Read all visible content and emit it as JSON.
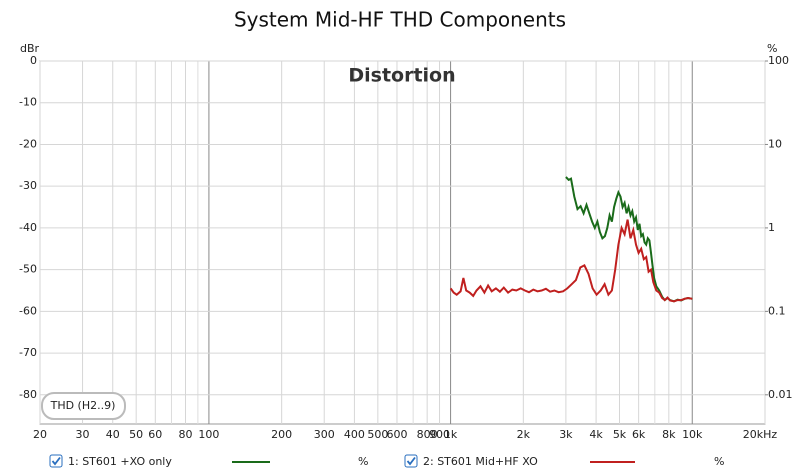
{
  "chart_data": {
    "type": "line",
    "title": "System Mid-HF THD Components",
    "annotation": "Distortion",
    "button": "THD (H2..9)",
    "y_axis_label": "dBr",
    "y2_axis_label": "%",
    "x_log": true,
    "y2_log": true,
    "grid": true,
    "xlim": [
      20,
      20000
    ],
    "ylim": [
      -87,
      0
    ],
    "y2lim": [
      0.00447,
      100
    ],
    "xticks": [
      20,
      30,
      40,
      50,
      60,
      80,
      100,
      200,
      300,
      400,
      500,
      600,
      800,
      900,
      {
        "value": 1000,
        "label": "1k"
      },
      {
        "value": 2000,
        "label": "2k"
      },
      {
        "value": 3000,
        "label": "3k"
      },
      {
        "value": 4000,
        "label": "4k"
      },
      {
        "value": 5000,
        "label": "5k"
      },
      {
        "value": 6000,
        "label": "6k"
      },
      {
        "value": 8000,
        "label": "8k"
      },
      {
        "value": 10000,
        "label": "10k"
      },
      {
        "value": 20000,
        "label": "20kHz"
      }
    ],
    "xminor": [
      70,
      700,
      7000,
      9000,
      70,
      90
    ],
    "yticks": [
      0,
      -10,
      -20,
      -30,
      -40,
      -50,
      -60,
      -70,
      -80
    ],
    "y2ticks": [
      100,
      10,
      1,
      0.1,
      0.01
    ],
    "series": [
      {
        "name": "1: ST601 +XO only",
        "unit": "%",
        "color": "#1a6b1a",
        "x": [
          3000,
          3080,
          3150,
          3250,
          3350,
          3450,
          3550,
          3650,
          3750,
          3850,
          3950,
          4050,
          4150,
          4250,
          4350,
          4450,
          4550,
          4650,
          4750,
          4850,
          4950,
          5050,
          5150,
          5250,
          5350,
          5450,
          5550,
          5650,
          5750,
          5850,
          5950,
          6050,
          6150,
          6250,
          6350,
          6450,
          6550,
          6650,
          6750,
          6850,
          6950,
          7100,
          7300,
          7500,
          7700,
          7900,
          8100,
          8400,
          8700,
          9000,
          9300,
          9600,
          10000
        ],
        "values": [
          -27.8,
          -28.5,
          -28.2,
          -32.5,
          -35.5,
          -34.8,
          -36.5,
          -34.5,
          -36.5,
          -38.5,
          -40,
          -38.5,
          -41,
          -42.5,
          -42,
          -40,
          -37,
          -38.5,
          -35,
          -33,
          -31.5,
          -32.5,
          -35,
          -34,
          -36.5,
          -35,
          -37,
          -36,
          -38.5,
          -37.5,
          -40.5,
          -39,
          -42,
          -41.5,
          -43.5,
          -44,
          -42.5,
          -43,
          -46,
          -49,
          -52,
          -54,
          -55,
          -56.5,
          -57.3,
          -56.8,
          -57.3,
          -57.6,
          -57.2,
          -57.4,
          -57,
          -56.8,
          -57
        ]
      },
      {
        "name": "2: ST601 Mid+HF XO",
        "unit": "%",
        "color": "#c0201f",
        "x": [
          1000,
          1030,
          1060,
          1100,
          1130,
          1160,
          1200,
          1240,
          1280,
          1330,
          1380,
          1430,
          1480,
          1540,
          1600,
          1660,
          1730,
          1800,
          1870,
          1950,
          2030,
          2110,
          2200,
          2290,
          2380,
          2480,
          2580,
          2690,
          2800,
          2920,
          3040,
          3170,
          3300,
          3440,
          3580,
          3720,
          3870,
          4020,
          4180,
          4340,
          4500,
          4650,
          4800,
          4950,
          5100,
          5250,
          5400,
          5550,
          5700,
          5850,
          6000,
          6150,
          6300,
          6450,
          6600,
          6750,
          6900,
          7100,
          7300,
          7500,
          7700,
          7900,
          8100,
          8400,
          8700,
          9000,
          9300,
          9600,
          10000
        ],
        "values": [
          -54.5,
          -55.5,
          -56,
          -55.2,
          -52,
          -55,
          -55.5,
          -56.3,
          -55,
          -54,
          -55.5,
          -53.8,
          -55.2,
          -54.5,
          -55.3,
          -54.3,
          -55.5,
          -54.8,
          -55,
          -54.5,
          -55,
          -55.4,
          -54.8,
          -55.2,
          -55,
          -54.6,
          -55.3,
          -55,
          -55.4,
          -55.2,
          -54.5,
          -53.5,
          -52.5,
          -49.5,
          -49,
          -51,
          -54.5,
          -56,
          -55,
          -53.5,
          -56,
          -55,
          -50,
          -44,
          -40,
          -41.5,
          -38,
          -42.5,
          -40.5,
          -44,
          -46,
          -45,
          -47.5,
          -47,
          -50.5,
          -50,
          -53,
          -55,
          -55.5,
          -56.8,
          -57.3,
          -56.7,
          -57.4,
          -57.6,
          -57.3,
          -57.3,
          -57,
          -56.8,
          -57
        ]
      }
    ]
  }
}
